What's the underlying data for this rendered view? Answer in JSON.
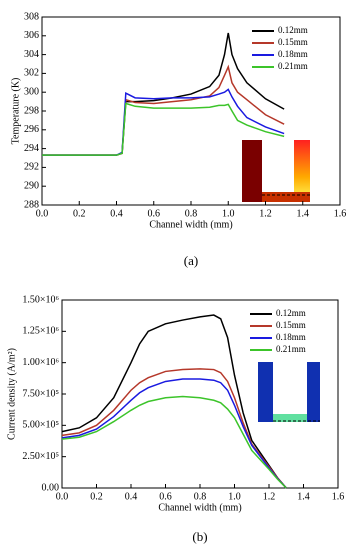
{
  "chart_data": [
    {
      "type": "line",
      "caption": "(a)",
      "xlabel": "Channel width (mm)",
      "ylabel": "Temperature (K)",
      "x": [
        0,
        0.2,
        0.4,
        0.43,
        0.45,
        0.5,
        0.6,
        0.7,
        0.8,
        0.9,
        0.95,
        0.98,
        1.0,
        1.02,
        1.05,
        1.1,
        1.2,
        1.3
      ],
      "xlim": [
        0,
        1.6
      ],
      "xticks": [
        {
          "value": 0,
          "label": "0.0"
        },
        0.2,
        0.4,
        0.6,
        0.8,
        {
          "value": 1,
          "label": "1.0"
        },
        1.2,
        1.4,
        1.6
      ],
      "ylim": [
        288,
        308
      ],
      "yticks": [
        288,
        290,
        292,
        294,
        296,
        298,
        300,
        302,
        304,
        306,
        308
      ],
      "legend": "upper right",
      "series": [
        {
          "name": "0.12mm",
          "color": "#000000",
          "values": [
            293.3,
            293.3,
            293.3,
            293.5,
            299.0,
            299.0,
            299.1,
            299.4,
            299.8,
            300.6,
            301.8,
            304.0,
            306.3,
            304.0,
            302.5,
            301.0,
            299.3,
            298.2
          ]
        },
        {
          "name": "0.15mm",
          "color": "#b5382a",
          "values": [
            293.3,
            293.3,
            293.3,
            293.5,
            299.2,
            298.9,
            298.8,
            299.0,
            299.2,
            299.6,
            300.5,
            301.8,
            302.7,
            301.0,
            300.0,
            299.2,
            297.6,
            296.6
          ]
        },
        {
          "name": "0.18mm",
          "color": "#1a1ae0",
          "values": [
            293.3,
            293.3,
            293.3,
            293.6,
            299.9,
            299.4,
            299.3,
            299.4,
            299.4,
            299.5,
            299.8,
            300.0,
            300.3,
            299.5,
            298.5,
            297.3,
            296.3,
            295.6
          ]
        },
        {
          "name": "0.21mm",
          "color": "#3cc42a",
          "values": [
            293.3,
            293.3,
            293.3,
            293.5,
            298.8,
            298.5,
            298.3,
            298.3,
            298.3,
            298.4,
            298.6,
            298.6,
            298.7,
            298.0,
            297.0,
            296.5,
            295.8,
            295.3
          ]
        }
      ]
    },
    {
      "type": "line",
      "caption": "(b)",
      "xlabel": "Channel width (mm)",
      "ylabel": "Current density (A/m²)",
      "x": [
        0,
        0.1,
        0.2,
        0.3,
        0.4,
        0.45,
        0.5,
        0.6,
        0.7,
        0.8,
        0.88,
        0.92,
        0.96,
        1.0,
        1.05,
        1.1,
        1.2,
        1.25,
        1.3
      ],
      "xlim": [
        0,
        1.6
      ],
      "xticks": [
        {
          "value": 0,
          "label": "0.0"
        },
        0.2,
        0.4,
        0.6,
        0.8,
        {
          "value": 1,
          "label": "1.0"
        },
        1.2,
        1.4,
        1.6
      ],
      "ylim": [
        0,
        1500000
      ],
      "yticks": [
        {
          "value": 0,
          "label": "0.00"
        },
        {
          "value": 250000,
          "label": "2.50×10⁵"
        },
        {
          "value": 500000,
          "label": "5.00×10⁵"
        },
        {
          "value": 750000,
          "label": "7.50×10⁵"
        },
        {
          "value": 1000000,
          "label": "1.00×10⁶"
        },
        {
          "value": 1250000,
          "label": "1.25×10⁶"
        },
        {
          "value": 1500000,
          "label": "1.50×10⁶"
        }
      ],
      "legend": "upper right",
      "series": [
        {
          "name": "0.12mm",
          "color": "#000000",
          "values": [
            450000,
            480000,
            560000,
            720000,
            1000000,
            1150000,
            1250000,
            1310000,
            1340000,
            1365000,
            1380000,
            1350000,
            1200000,
            900000,
            600000,
            380000,
            180000,
            80000,
            0
          ]
        },
        {
          "name": "0.15mm",
          "color": "#b5382a",
          "values": [
            420000,
            440000,
            500000,
            620000,
            780000,
            840000,
            880000,
            930000,
            945000,
            950000,
            945000,
            920000,
            850000,
            720000,
            520000,
            350000,
            170000,
            80000,
            0
          ]
        },
        {
          "name": "0.18mm",
          "color": "#1a1ae0",
          "values": [
            400000,
            420000,
            470000,
            570000,
            700000,
            760000,
            800000,
            850000,
            870000,
            870000,
            860000,
            840000,
            780000,
            660000,
            490000,
            340000,
            160000,
            75000,
            0
          ]
        },
        {
          "name": "0.21mm",
          "color": "#3cc42a",
          "values": [
            390000,
            405000,
            450000,
            530000,
            620000,
            660000,
            690000,
            720000,
            730000,
            720000,
            700000,
            680000,
            630000,
            560000,
            430000,
            300000,
            150000,
            70000,
            0
          ]
        }
      ]
    }
  ]
}
